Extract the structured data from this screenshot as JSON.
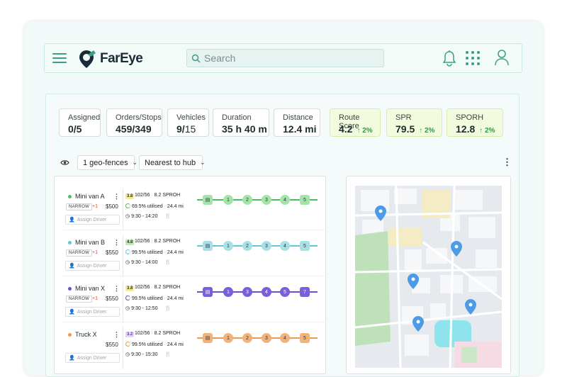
{
  "header": {
    "brand": "FarEye",
    "search_placeholder": "Search"
  },
  "stats": [
    {
      "label": "Assigned",
      "value": "0/5"
    },
    {
      "label": "Orders/Stops",
      "value": "459/349"
    },
    {
      "label": "Vehicles",
      "value_main": "9/",
      "value_muted": "15"
    },
    {
      "label": "Duration",
      "value": "35 h 40 m"
    },
    {
      "label": "Distance",
      "value": "12.4 mi"
    },
    {
      "label": "Route Score",
      "value": "4.2",
      "delta": "↑ 2%"
    },
    {
      "label": "SPR",
      "value": "79.5",
      "delta": "↑ 2%"
    },
    {
      "label": "SPORH",
      "value": "12.8",
      "delta": "↑ 2%"
    }
  ],
  "toolbar": {
    "geofence": "1 geo-fences",
    "sort": "Nearest to hub"
  },
  "colors": {
    "accent": "#3a9e86",
    "green": "#7cd37f",
    "cyan": "#8ad4de",
    "purple": "#7b5fd6",
    "orange": "#f0a25a"
  },
  "routes": [
    {
      "name": "Mini van A",
      "color": "#4cbf63",
      "narrow": "NARROW",
      "plus": "+1",
      "price": "$500",
      "assign": "Assign Driver",
      "score": "3.8",
      "ratio": "102/56",
      "sproh": "8.2 SPROH",
      "utilised": "69.5% utilised",
      "distance": "24.4 mi",
      "time": "9:30 - 14:20",
      "stops": [
        "",
        "1",
        "2",
        "3",
        "4",
        "5"
      ]
    },
    {
      "name": "Mini van B",
      "color": "#62c7d3",
      "narrow": "NARROW",
      "plus": "+1",
      "price": "$550",
      "assign": "Assign Driver",
      "score": "4.8",
      "ratio": "102/56",
      "sproh": "8.2 SPROH",
      "utilised": "99.5% utilised",
      "distance": "24.4 mi",
      "time": "9:30 - 14:00",
      "stops": [
        "",
        "1",
        "2",
        "3",
        "4",
        "5"
      ]
    },
    {
      "name": "Mini van X",
      "color": "#6a4fd0",
      "narrow": "NARROW",
      "plus": "+1",
      "price": "$550",
      "assign": "Assign Driver",
      "score": "3.8",
      "ratio": "102/56",
      "sproh": "8.2 SPROH",
      "utilised": "99.5% utilised",
      "distance": "24.4 mi",
      "time": "9:30 - 12:50",
      "stops": [
        "",
        "1",
        "3",
        "4",
        "5",
        "7"
      ]
    },
    {
      "name": "Truck X",
      "color": "#ee9a4d",
      "narrow": "",
      "plus": "",
      "price": "$550",
      "assign": "Assign Driver",
      "score": "3.2",
      "ratio": "102/56",
      "sproh": "8.2 SPROH",
      "utilised": "99.5% utilised",
      "distance": "24.4 mi",
      "time": "9:30 - 15:30",
      "stops": [
        "",
        "1",
        "2",
        "3",
        "4",
        "5"
      ]
    }
  ]
}
